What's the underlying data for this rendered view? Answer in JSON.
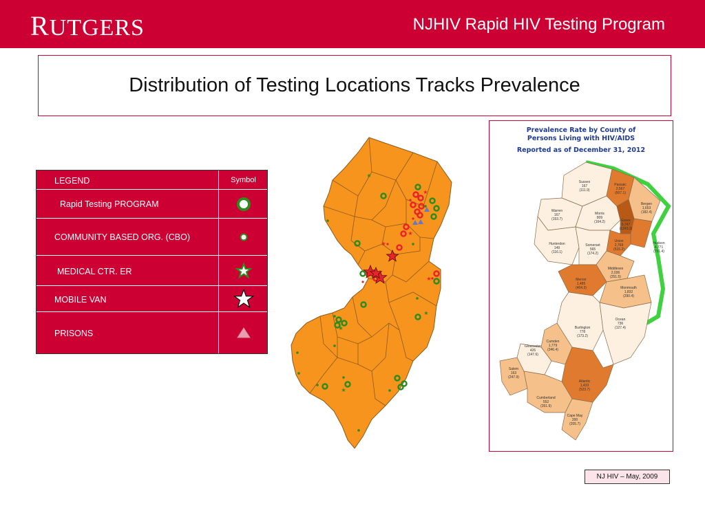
{
  "header": {
    "logo": "Rutgers",
    "logo_initial": "R",
    "logo_rest": "UTGERS",
    "title": "NJHIV Rapid HIV Testing Program"
  },
  "slide": {
    "title": "Distribution of Testing Locations Tracks Prevalence"
  },
  "legend": {
    "heading": "LEGEND",
    "symbol_heading": "Symbol",
    "items": [
      {
        "label": "Rapid Testing PROGRAM",
        "symbol": "ring-icon"
      },
      {
        "label": "COMMUNITY BASED ORG. (CBO)",
        "symbol": "dot-icon"
      },
      {
        "label": "MEDICAL CTR. ER",
        "symbol": "green-star-icon"
      },
      {
        "label": "MOBILE VAN",
        "symbol": "white-star-icon"
      },
      {
        "label": "PRISONS",
        "symbol": "triangle-icon"
      }
    ]
  },
  "prevalence_map": {
    "title_line1": "Prevalence Rate by County of",
    "title_line2": "Persons Living with HIV/AIDS",
    "title_line3": "Reported as of December 31, 2012",
    "counties": [
      {
        "name": "Sussex",
        "count": "167",
        "rate": "(111.9)"
      },
      {
        "name": "Passaic",
        "count": "2,567",
        "rate": "(507.1)"
      },
      {
        "name": "Bergen",
        "count": "1,653",
        "rate": "(182.4)"
      },
      {
        "name": "Warren",
        "count": "167",
        "rate": "(153.7)"
      },
      {
        "name": "Morris",
        "count": "809",
        "rate": "(164.2)"
      },
      {
        "name": "Essex",
        "count": "9,747",
        "rate": "(1243.3)"
      },
      {
        "name": "Hudson",
        "count": "4,771",
        "rate": "(751.4)"
      },
      {
        "name": "Union",
        "count": "2,769",
        "rate": "(515.2)"
      },
      {
        "name": "Hunterdon",
        "count": "149",
        "rate": "(116.1)"
      },
      {
        "name": "Somerset",
        "count": "565",
        "rate": "(174.2)"
      },
      {
        "name": "Middlesex",
        "count": "2,036",
        "rate": "(251.5)"
      },
      {
        "name": "Mercer",
        "count": "1,485",
        "rate": "(404.3)"
      },
      {
        "name": "Monmouth",
        "count": "1,832",
        "rate": "(290.4)"
      },
      {
        "name": "Ocean",
        "count": "736",
        "rate": "(127.4)"
      },
      {
        "name": "Burlington",
        "count": "778",
        "rate": "(173.2)"
      },
      {
        "name": "Camden",
        "count": "1,779",
        "rate": "(346.4)"
      },
      {
        "name": "Gloucester",
        "count": "426",
        "rate": "(147.6)"
      },
      {
        "name": "Salem",
        "count": "163",
        "rate": "(247.9)"
      },
      {
        "name": "Atlantic",
        "count": "1,433",
        "rate": "(523.7)"
      },
      {
        "name": "Cumberland",
        "count": "552",
        "rate": "(351.9)"
      },
      {
        "name": "Cape May",
        "count": "200",
        "rate": "(205.7)"
      }
    ]
  },
  "source": "NJ HIV  – May, 2009",
  "colors": {
    "brand_red": "#cc0033",
    "map_orange": "#f7941d",
    "ring_green": "#2e8b1e",
    "ring_red": "#e8232a"
  }
}
